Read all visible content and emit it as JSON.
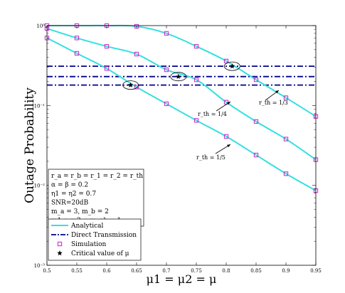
{
  "chart_data": {
    "type": "line",
    "xlabel": "μ1 = μ2 = μ",
    "ylabel": "Outage Probability",
    "xlim": [
      0.5,
      0.95
    ],
    "ylim": [
      0.001,
      1
    ],
    "yscale": "log",
    "x_ticks": [
      "0.5",
      "0.55",
      "0.6",
      "0.65",
      "0.7",
      "0.75",
      "0.8",
      "0.85",
      "0.9",
      "0.95"
    ],
    "y_ticks": [
      "10⁻³",
      "10⁻²",
      "10⁻¹",
      "10⁰"
    ],
    "grid": false,
    "legend_position": "bottom-left",
    "legend": [
      {
        "label": "Analytical",
        "style": "line",
        "color": "#33e0e0"
      },
      {
        "label": "Direct Transmission",
        "style": "dashdot",
        "color": "#00008b"
      },
      {
        "label": "Simulation",
        "style": "square-marker",
        "color": "#cc33cc"
      },
      {
        "label": "Critical value of μ",
        "style": "star",
        "color": "#000000"
      }
    ],
    "params_box": [
      "r_a = r_b = r_1 = r_2 = r_th",
      "α = β = 0.2",
      "η1 = η2 = 0.7",
      "SNR=20dB",
      "m_a = 3, m_b = 2",
      "m1 = m2 = m_ab = 1"
    ],
    "series": [
      {
        "annotation": "r_th = 1/3",
        "x": [
          0.5,
          0.55,
          0.6,
          0.65,
          0.7,
          0.75,
          0.8,
          0.85,
          0.9,
          0.95
        ],
        "analytical": [
          1.0,
          1.0,
          1.0,
          0.98,
          0.8,
          0.55,
          0.36,
          0.21,
          0.125,
          0.073
        ],
        "simulation": [
          1.0,
          1.0,
          1.0,
          0.98,
          0.8,
          0.55,
          0.36,
          0.21,
          0.125,
          0.073
        ]
      },
      {
        "annotation": "r_th = 1/4",
        "x": [
          0.5,
          0.55,
          0.6,
          0.65,
          0.7,
          0.75,
          0.8,
          0.85,
          0.9,
          0.95
        ],
        "analytical": [
          0.92,
          0.7,
          0.55,
          0.44,
          0.28,
          0.21,
          0.11,
          0.063,
          0.038,
          0.021
        ],
        "simulation": [
          0.92,
          0.7,
          0.55,
          0.44,
          0.28,
          0.21,
          0.11,
          0.063,
          0.038,
          0.021
        ]
      },
      {
        "annotation": "r_th = 1/5",
        "x": [
          0.5,
          0.55,
          0.6,
          0.65,
          0.7,
          0.75,
          0.8,
          0.85,
          0.9,
          0.95
        ],
        "analytical": [
          0.7,
          0.45,
          0.29,
          0.17,
          0.105,
          0.065,
          0.041,
          0.024,
          0.014,
          0.0086
        ],
        "simulation": [
          0.7,
          0.45,
          0.29,
          0.17,
          0.105,
          0.065,
          0.041,
          0.024,
          0.014,
          0.0086
        ]
      }
    ],
    "direct_transmission": [
      {
        "label": "r_th = 1/3",
        "value": 0.31
      },
      {
        "label": "r_th = 1/4",
        "value": 0.23
      },
      {
        "label": "r_th = 1/5",
        "value": 0.18
      }
    ],
    "critical_points": [
      {
        "x": 0.81,
        "y": 0.31
      },
      {
        "x": 0.72,
        "y": 0.23
      },
      {
        "x": 0.64,
        "y": 0.18
      }
    ],
    "colors": {
      "analytical": "#33e0e0",
      "direct": "#00008b",
      "simulation": "#cc33cc",
      "critical": "#000000"
    }
  }
}
